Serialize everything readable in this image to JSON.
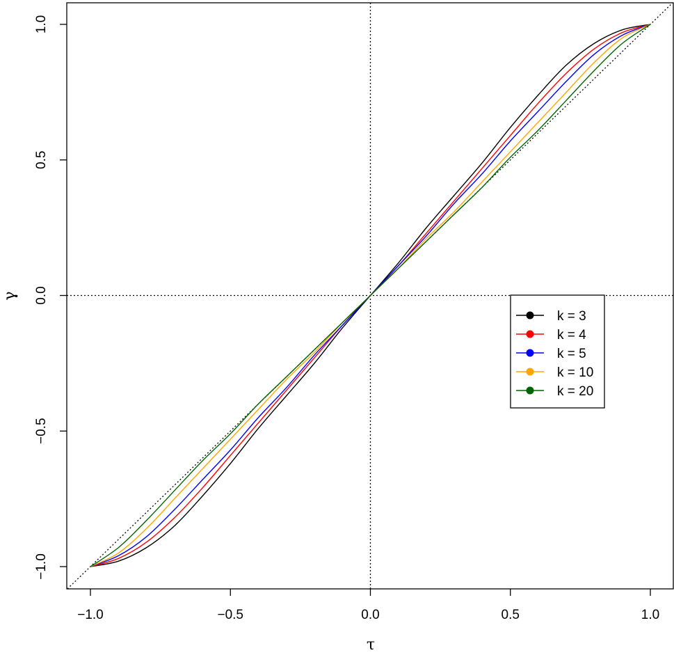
{
  "chart_data": {
    "type": "line",
    "title": "",
    "xlabel": "τ",
    "ylabel": "γ",
    "xlim": [
      -1.08,
      1.08
    ],
    "ylim": [
      -1.08,
      1.08
    ],
    "x_ticks": [
      "-1.0",
      "-0.5",
      "0.0",
      "0.5",
      "1.0"
    ],
    "y_ticks": [
      "-1.0",
      "-0.5",
      "0.0",
      "0.5",
      "1.0"
    ],
    "grid": false,
    "reference_lines": [
      "x = 0",
      "y = 0",
      "y = x"
    ],
    "legend": {
      "placement": "right",
      "entries": [
        "k = 3",
        "k = 4",
        "k = 5",
        "k = 10",
        "k = 20"
      ]
    },
    "x": [
      -1.0,
      -0.9,
      -0.8,
      -0.7,
      -0.6,
      -0.5,
      -0.4,
      -0.3,
      -0.2,
      -0.1,
      0.0,
      0.1,
      0.2,
      0.3,
      0.4,
      0.5,
      0.6,
      0.7,
      0.8,
      0.9,
      1.0
    ],
    "series": [
      {
        "name": "k = 3",
        "color": "#000000",
        "values": [
          -1.0,
          -0.98,
          -0.93,
          -0.85,
          -0.74,
          -0.62,
          -0.49,
          -0.37,
          -0.25,
          -0.12,
          0.0,
          0.12,
          0.25,
          0.37,
          0.49,
          0.62,
          0.74,
          0.85,
          0.93,
          0.98,
          1.0
        ]
      },
      {
        "name": "k = 4",
        "color": "#ff0000",
        "values": [
          -1.0,
          -0.97,
          -0.91,
          -0.82,
          -0.71,
          -0.59,
          -0.47,
          -0.35,
          -0.23,
          -0.11,
          0.0,
          0.11,
          0.23,
          0.35,
          0.47,
          0.59,
          0.71,
          0.82,
          0.91,
          0.97,
          1.0
        ]
      },
      {
        "name": "k = 5",
        "color": "#0000ff",
        "values": [
          -1.0,
          -0.96,
          -0.89,
          -0.79,
          -0.68,
          -0.57,
          -0.45,
          -0.34,
          -0.22,
          -0.11,
          0.0,
          0.11,
          0.22,
          0.34,
          0.45,
          0.57,
          0.68,
          0.79,
          0.89,
          0.96,
          1.0
        ]
      },
      {
        "name": "k = 10",
        "color": "#ffa500",
        "values": [
          -1.0,
          -0.95,
          -0.86,
          -0.75,
          -0.64,
          -0.53,
          -0.42,
          -0.31,
          -0.21,
          -0.1,
          0.0,
          0.1,
          0.21,
          0.31,
          0.42,
          0.53,
          0.64,
          0.75,
          0.86,
          0.95,
          1.0
        ]
      },
      {
        "name": "k = 20",
        "color": "#006400",
        "values": [
          -1.0,
          -0.93,
          -0.83,
          -0.72,
          -0.61,
          -0.51,
          -0.4,
          -0.3,
          -0.2,
          -0.1,
          0.0,
          0.1,
          0.2,
          0.3,
          0.4,
          0.51,
          0.61,
          0.72,
          0.83,
          0.93,
          1.0
        ]
      }
    ]
  }
}
